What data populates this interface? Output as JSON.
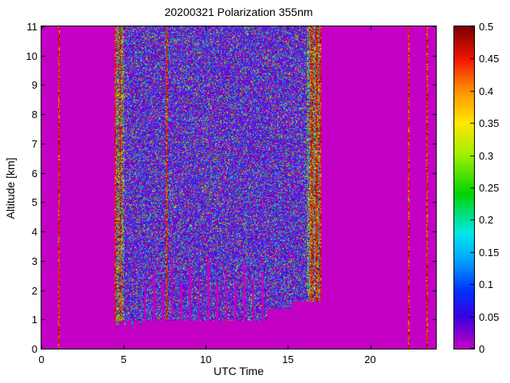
{
  "chart_data": {
    "type": "heatmap",
    "title": "20200321 Polarization 355nm",
    "xlabel": "UTC Time",
    "ylabel": "Altitude [km]",
    "x_range": [
      0,
      24
    ],
    "y_range": [
      0,
      11
    ],
    "x_ticks": [
      0,
      5,
      10,
      15,
      20
    ],
    "x_tick_labels": [
      "0",
      "5",
      "10",
      "15",
      "20"
    ],
    "y_ticks": [
      0,
      1,
      2,
      3,
      4,
      5,
      6,
      7,
      8,
      9,
      10,
      11
    ],
    "y_tick_labels": [
      "0",
      "1",
      "2",
      "3",
      "4",
      "5",
      "6",
      "7",
      "8",
      "9",
      "10",
      "11"
    ],
    "colorbar": {
      "min": 0,
      "max": 0.5,
      "ticks": [
        0,
        0.05,
        0.1,
        0.15,
        0.2,
        0.25,
        0.3,
        0.35,
        0.4,
        0.45,
        0.5
      ],
      "tick_labels": [
        "0",
        "0.05",
        "0.1",
        "0.15",
        "0.2",
        "0.25",
        "0.3",
        "0.35",
        "0.4",
        "0.45",
        "0.5"
      ]
    },
    "colormap": [
      {
        "v": 0.0,
        "c": "#C400C4"
      },
      {
        "v": 0.05,
        "c": "#3A00E0"
      },
      {
        "v": 0.09,
        "c": "#0033FF"
      },
      {
        "v": 0.14,
        "c": "#00AAFF"
      },
      {
        "v": 0.18,
        "c": "#00E8E8"
      },
      {
        "v": 0.24,
        "c": "#00D400"
      },
      {
        "v": 0.3,
        "c": "#9FEF00"
      },
      {
        "v": 0.35,
        "c": "#FFE800"
      },
      {
        "v": 0.4,
        "c": "#FF9100"
      },
      {
        "v": 0.45,
        "c": "#F01400"
      },
      {
        "v": 0.5,
        "c": "#7A0000"
      }
    ],
    "background_value_color": "#C400C4",
    "seed": 1337,
    "noise_region": {
      "x_from": 4.45,
      "x_to": 17.0,
      "edge_band_left": 0.6,
      "edge_band_right": 0.85,
      "bottom_segments": [
        {
          "x_to": 13.7,
          "y": 0.95
        },
        {
          "x_to": 15.2,
          "y": 1.35
        },
        {
          "x_to": 17.0,
          "y": 1.6
        }
      ],
      "extensions": [
        {
          "x": 4.62,
          "w": 0.12,
          "bottom": 0.78
        },
        {
          "x": 5.1,
          "w": 0.1,
          "bottom": 0.82
        },
        {
          "x": 5.55,
          "w": 0.1,
          "bottom": 0.72
        },
        {
          "x": 6.05,
          "w": 0.1,
          "bottom": 0.8
        }
      ]
    },
    "streaks": [
      {
        "x": 1.05,
        "w": 0.1,
        "y0": 0,
        "y1": 11
      },
      {
        "x": 4.52,
        "w": 0.12,
        "y0": 0.9,
        "y1": 11
      },
      {
        "x": 4.78,
        "w": 0.1,
        "y0": 0.9,
        "y1": 11
      },
      {
        "x": 7.62,
        "w": 0.08,
        "y0": 0.95,
        "y1": 11
      },
      {
        "x": 16.45,
        "w": 0.12,
        "y0": 1.6,
        "y1": 11
      },
      {
        "x": 16.75,
        "w": 0.12,
        "y0": 1.6,
        "y1": 11
      },
      {
        "x": 16.98,
        "w": 0.1,
        "y0": 1.6,
        "y1": 11
      },
      {
        "x": 22.35,
        "w": 0.1,
        "y0": 0,
        "y1": 11
      },
      {
        "x": 23.45,
        "w": 0.1,
        "y0": 0,
        "y1": 11
      }
    ],
    "dropout_columns": [
      {
        "x": 6.3,
        "w": 0.13,
        "top": 2.1
      },
      {
        "x": 6.85,
        "w": 0.13,
        "top": 2.7
      },
      {
        "x": 7.4,
        "w": 0.13,
        "top": 2.3
      },
      {
        "x": 7.95,
        "w": 0.13,
        "top": 3.0
      },
      {
        "x": 8.5,
        "w": 0.13,
        "top": 2.2
      },
      {
        "x": 9.05,
        "w": 0.13,
        "top": 2.8
      },
      {
        "x": 9.6,
        "w": 0.13,
        "top": 2.4
      },
      {
        "x": 10.15,
        "w": 0.13,
        "top": 3.05
      },
      {
        "x": 10.7,
        "w": 0.13,
        "top": 2.3
      },
      {
        "x": 11.25,
        "w": 0.13,
        "top": 2.75
      },
      {
        "x": 11.8,
        "w": 0.13,
        "top": 2.2
      },
      {
        "x": 12.35,
        "w": 0.13,
        "top": 2.9
      },
      {
        "x": 12.9,
        "w": 0.13,
        "top": 2.35
      },
      {
        "x": 13.45,
        "w": 0.13,
        "top": 2.6
      }
    ]
  }
}
